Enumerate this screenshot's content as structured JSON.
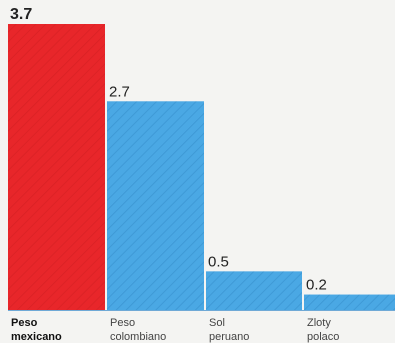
{
  "chart_data": {
    "type": "bar",
    "categories": [
      [
        "Peso",
        "mexicano"
      ],
      [
        "Peso",
        "colombiano"
      ],
      [
        "Sol",
        "peruano"
      ],
      [
        "Zloty",
        "polaco"
      ]
    ],
    "values": [
      3.7,
      2.7,
      0.5,
      0.2
    ],
    "value_labels": [
      "3.7",
      "2.7",
      "0.5",
      "0.2"
    ],
    "highlight_index": 0,
    "ylim": [
      0,
      3.7
    ],
    "grid": false,
    "legend": "none",
    "colors": {
      "highlight": "#e8262a",
      "default": "#4aa8e4",
      "hatch": "#2f86c4",
      "hatch_highlight": "#c81b1f",
      "background": "#f4f4f2",
      "baseline": "#6fa9d6"
    }
  }
}
